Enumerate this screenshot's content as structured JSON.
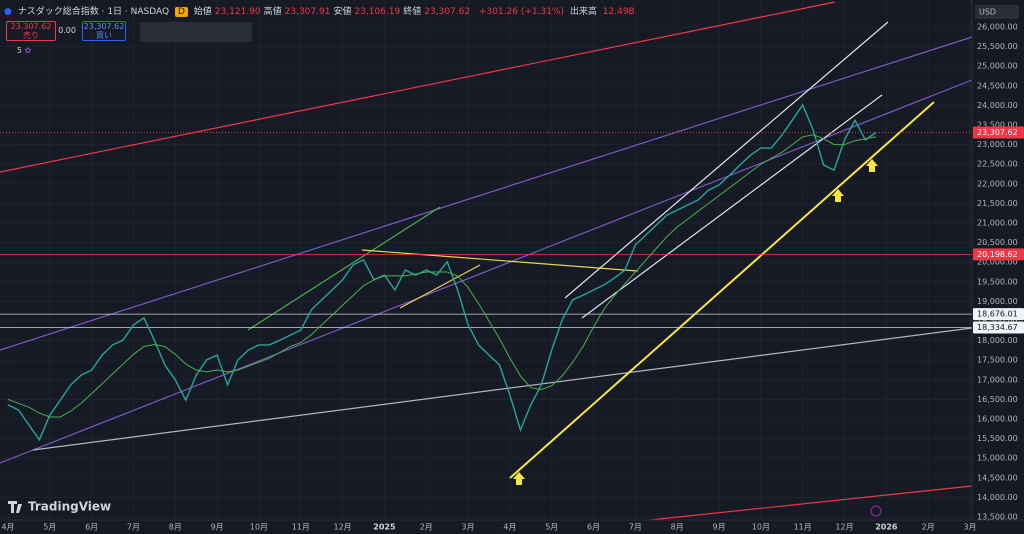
{
  "header": {
    "symbol": "ナスダック総合指数 · 1日 · NASDAQ",
    "interval_badge": "D",
    "ohlc": [
      [
        "始値",
        "23,121.90"
      ],
      [
        "高値",
        "23,307.91"
      ],
      [
        "安値",
        "23,106.19"
      ],
      [
        "終値",
        "23,307.62"
      ]
    ],
    "change": "+301.26 (+1.31%)",
    "volume_label": "出来高",
    "volume": "12.49B",
    "sell_price": "23,307.62",
    "sell_label": "売り",
    "spread": "0.00",
    "buy_price": "23,307.62",
    "buy_label": "買い",
    "indicator_count": "5",
    "currency": "USD",
    "brand": "TradingView"
  },
  "chart_data": {
    "type": "line",
    "categories": [
      "4月",
      null,
      null,
      null,
      "5月",
      null,
      null,
      null,
      "6月",
      null,
      null,
      null,
      "7月",
      null,
      null,
      null,
      "8月",
      null,
      null,
      null,
      "9月",
      null,
      null,
      null,
      "10月",
      null,
      null,
      null,
      "11月",
      null,
      null,
      null,
      "12月",
      null,
      null,
      null,
      "2025",
      null,
      null,
      null,
      "2月",
      null,
      null,
      null,
      "3月",
      null,
      null,
      null,
      "4月",
      null,
      null,
      null,
      "5月",
      null,
      null,
      null,
      "6月",
      null,
      null,
      null,
      "7月",
      null,
      null,
      null,
      "8月",
      null,
      null,
      null,
      "9月",
      null,
      null,
      null,
      "10月",
      null,
      null,
      null,
      "11月",
      null,
      null,
      null,
      "12月",
      null,
      null,
      null,
      "2026",
      null,
      null,
      null,
      "2月",
      null,
      null,
      null,
      "3月"
    ],
    "series": [
      {
        "color": "#26a69a",
        "values": [
          16360,
          16230,
          15850,
          15470,
          16100,
          16480,
          16870,
          17120,
          17250,
          17630,
          17890,
          18010,
          18400,
          18580,
          18010,
          17380,
          17000,
          16480,
          17120,
          17510,
          17630,
          16870,
          17510,
          17760,
          17890,
          17890,
          18010,
          18140,
          18270,
          18780,
          19040,
          19290,
          19550,
          19930,
          20060,
          19550,
          19670,
          19290,
          19800,
          19670,
          19800,
          19670,
          20010,
          19290,
          18400,
          17890,
          17630,
          17380,
          16610,
          15720,
          16360,
          16870,
          17760,
          18530,
          19040,
          19160,
          19290,
          19420,
          19600,
          19800,
          20440,
          20690,
          20950,
          21200,
          21330,
          21460,
          21590,
          21840,
          21970,
          22220,
          22480,
          22730,
          22910,
          22910,
          23240,
          23620,
          24010,
          23370,
          22480,
          22350,
          23120,
          23620,
          23120,
          23307.62,
          null,
          null,
          null,
          null,
          null,
          null,
          null,
          null,
          null
        ]
      },
      {
        "color": "#4caf50",
        "values": [
          16500,
          16400,
          16300,
          16150,
          16050,
          16050,
          16200,
          16400,
          16650,
          16900,
          17150,
          17400,
          17650,
          17850,
          17900,
          17850,
          17650,
          17400,
          17250,
          17200,
          17250,
          17200,
          17250,
          17350,
          17450,
          17550,
          17700,
          17850,
          17950,
          18150,
          18400,
          18650,
          18900,
          19150,
          19400,
          19550,
          19650,
          19650,
          19650,
          19700,
          19750,
          19750,
          19750,
          19650,
          19350,
          18950,
          18500,
          18050,
          17550,
          17100,
          16800,
          16750,
          16850,
          17100,
          17450,
          17850,
          18350,
          18800,
          19150,
          19450,
          19750,
          20050,
          20350,
          20650,
          20900,
          21100,
          21300,
          21500,
          21700,
          21900,
          22100,
          22300,
          22500,
          22650,
          22800,
          23000,
          23200,
          23250,
          23150,
          23000,
          23000,
          23100,
          23150,
          23200,
          null,
          null,
          null,
          null,
          null,
          null,
          null,
          null,
          null
        ]
      }
    ],
    "ylim": [
      13423,
      26689
    ],
    "yticks": [
      {
        "value": 13500,
        "label": "13,500.00"
      },
      {
        "value": 14000,
        "label": "14,000.00"
      },
      {
        "value": 14500,
        "label": "14,500.00"
      },
      {
        "value": 15000,
        "label": "15,000.00"
      },
      {
        "value": 15500,
        "label": "15,500.00"
      },
      {
        "value": 16000,
        "label": "16,000.00"
      },
      {
        "value": 16500,
        "label": "16,500.00"
      },
      {
        "value": 17000,
        "label": "17,000.00"
      },
      {
        "value": 17500,
        "label": "17,500.00"
      },
      {
        "value": 18000,
        "label": "18,000.00"
      },
      {
        "value": 18500,
        "label": "18,500.00"
      },
      {
        "value": 19000,
        "label": "19,000.00"
      },
      {
        "value": 19500,
        "label": "19,500.00"
      },
      {
        "value": 20000,
        "label": "20,000.00"
      },
      {
        "value": 20500,
        "label": "20,500.00"
      },
      {
        "value": 21000,
        "label": "21,000.00"
      },
      {
        "value": 21500,
        "label": "21,500.00"
      },
      {
        "value": 22000,
        "label": "22,000.00"
      },
      {
        "value": 22500,
        "label": "22,500.00"
      },
      {
        "value": 23000,
        "label": "23,000.00"
      },
      {
        "value": 23500,
        "label": "23,500.00"
      },
      {
        "value": 24000,
        "label": "24,000.00"
      },
      {
        "value": 24500,
        "label": "24,500.00"
      },
      {
        "value": 25000,
        "label": "25,000.00"
      },
      {
        "value": 25500,
        "label": "25,500.00"
      },
      {
        "value": 26000,
        "label": "26,000.00"
      }
    ],
    "levels": [
      {
        "value": 23307.62,
        "label": "23,307.62",
        "color": "#f23645",
        "dashed": true
      },
      {
        "value": 20198.62,
        "label": "20,198.62",
        "color": "#f23645",
        "dashed": false
      },
      {
        "value": 18676.01,
        "label": "18,676.01",
        "color": "#d1d4dc",
        "dashed": false
      },
      {
        "value": 18334.67,
        "label": "18,334.67",
        "color": "#d1d4dc",
        "dashed": false
      }
    ],
    "grid": true
  }
}
